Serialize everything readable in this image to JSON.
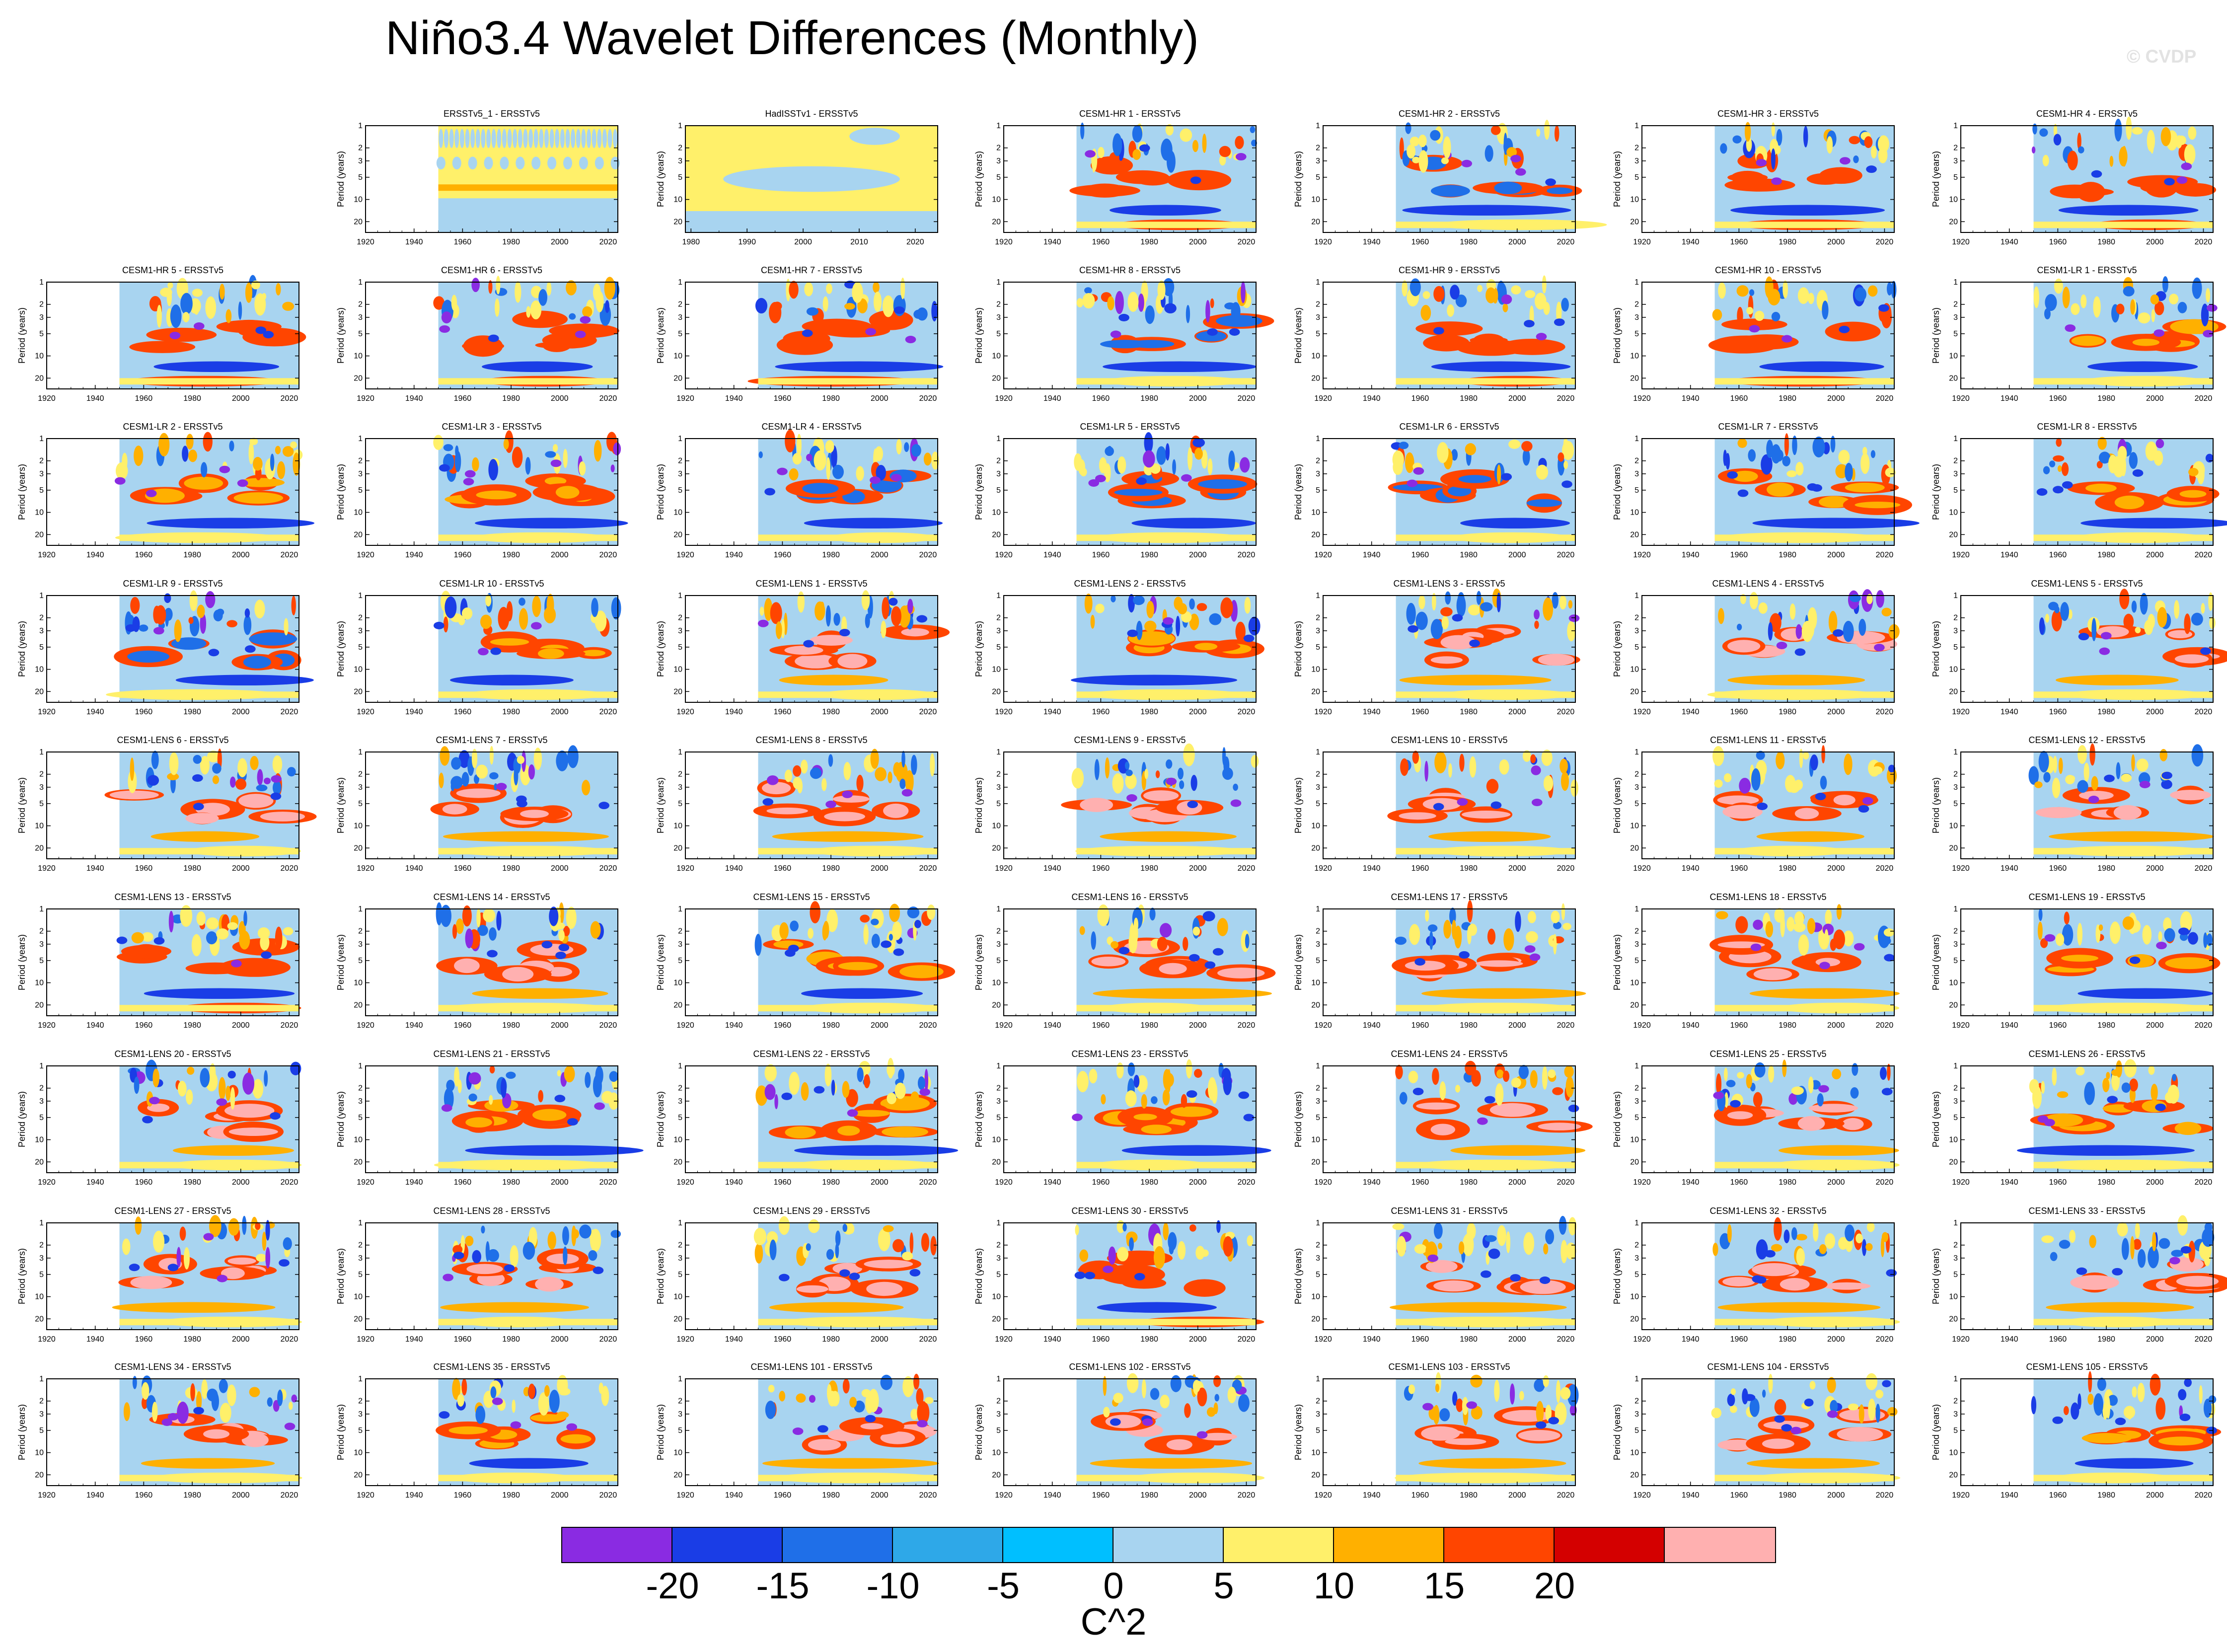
{
  "title": "Niño3.4 Wavelet Differences (Monthly)",
  "watermark": "© CVDP",
  "chart_data": {
    "type": "heatmap",
    "title": "Niño3.4 Wavelet Differences (Monthly)",
    "ylabel": "Period (years)",
    "yticks": [
      "1",
      "2",
      "3",
      "5",
      "10",
      "20"
    ],
    "xticks_default": [
      "1920",
      "1940",
      "1960",
      "1980",
      "2000",
      "2020"
    ],
    "xlim_default": [
      1920,
      2024
    ],
    "colorbar": {
      "units": "C^2",
      "labels": [
        "-20",
        "-15",
        "-10",
        "-5",
        "0",
        "5",
        "10",
        "15",
        "20"
      ],
      "colors": [
        "#8a2be2",
        "#1a3de6",
        "#1f6fe8",
        "#2ea8e8",
        "#00bfff",
        "#a8d4f0",
        "#fff06a",
        "#ffb000",
        "#ff4500",
        "#d40000",
        "#ffb0b0"
      ]
    },
    "panels": [
      {
        "name": "ERSSTv5_1 - ERSSTv5",
        "start": 1950,
        "xticks": [
          "1920",
          "1940",
          "1960",
          "1980",
          "2000",
          "2020"
        ],
        "pattern": "stripe"
      },
      {
        "name": "HadISSTv1 - ERSSTv5",
        "start": 1979,
        "xticks": [
          "1980",
          "1990",
          "2000",
          "2010",
          "2020"
        ],
        "pattern": "flat"
      },
      {
        "name": "CESM1-HR 1 - ERSSTv5",
        "start": 1950,
        "pattern": "warm"
      },
      {
        "name": "CESM1-HR 2 - ERSSTv5",
        "start": 1950,
        "pattern": "cool"
      },
      {
        "name": "CESM1-HR 3 - ERSSTv5",
        "start": 1950,
        "pattern": "warm"
      },
      {
        "name": "CESM1-HR 4 - ERSSTv5",
        "start": 1950,
        "pattern": "warm"
      },
      {
        "name": "CESM1-HR 5 - ERSSTv5",
        "start": 1950,
        "pattern": "warm"
      },
      {
        "name": "CESM1-HR 6 - ERSSTv5",
        "start": 1950,
        "pattern": "warm"
      },
      {
        "name": "CESM1-HR 7 - ERSSTv5",
        "start": 1950,
        "pattern": "warm"
      },
      {
        "name": "CESM1-HR 8 - ERSSTv5",
        "start": 1950,
        "pattern": "cool"
      },
      {
        "name": "CESM1-HR 9 - ERSSTv5",
        "start": 1950,
        "pattern": "warm"
      },
      {
        "name": "CESM1-HR 10 - ERSSTv5",
        "start": 1950,
        "pattern": "warm"
      },
      {
        "name": "CESM1-LR 1 - ERSSTv5",
        "start": 1950,
        "pattern": "mixed"
      },
      {
        "name": "CESM1-LR 2 - ERSSTv5",
        "start": 1950,
        "pattern": "mixed"
      },
      {
        "name": "CESM1-LR 3 - ERSSTv5",
        "start": 1950,
        "pattern": "mixed"
      },
      {
        "name": "CESM1-LR 4 - ERSSTv5",
        "start": 1950,
        "pattern": "cool"
      },
      {
        "name": "CESM1-LR 5 - ERSSTv5",
        "start": 1950,
        "pattern": "cool"
      },
      {
        "name": "CESM1-LR 6 - ERSSTv5",
        "start": 1950,
        "pattern": "cool"
      },
      {
        "name": "CESM1-LR 7 - ERSSTv5",
        "start": 1950,
        "pattern": "mixed"
      },
      {
        "name": "CESM1-LR 8 - ERSSTv5",
        "start": 1950,
        "pattern": "mixed"
      },
      {
        "name": "CESM1-LR 9 - ERSSTv5",
        "start": 1950,
        "pattern": "cool"
      },
      {
        "name": "CESM1-LR 10 - ERSSTv5",
        "start": 1950,
        "pattern": "mixed"
      },
      {
        "name": "CESM1-LENS 1 - ERSSTv5",
        "start": 1950,
        "pattern": "hot"
      },
      {
        "name": "CESM1-LENS 2 - ERSSTv5",
        "start": 1950,
        "pattern": "mixed"
      },
      {
        "name": "CESM1-LENS 3 - ERSSTv5",
        "start": 1950,
        "pattern": "hot"
      },
      {
        "name": "CESM1-LENS 4 - ERSSTv5",
        "start": 1950,
        "pattern": "hot"
      },
      {
        "name": "CESM1-LENS 5 - ERSSTv5",
        "start": 1950,
        "pattern": "hot"
      },
      {
        "name": "CESM1-LENS 6 - ERSSTv5",
        "start": 1950,
        "pattern": "hot"
      },
      {
        "name": "CESM1-LENS 7 - ERSSTv5",
        "start": 1950,
        "pattern": "hot"
      },
      {
        "name": "CESM1-LENS 8 - ERSSTv5",
        "start": 1950,
        "pattern": "hot"
      },
      {
        "name": "CESM1-LENS 9 - ERSSTv5",
        "start": 1950,
        "pattern": "hot"
      },
      {
        "name": "CESM1-LENS 10 - ERSSTv5",
        "start": 1950,
        "pattern": "hot"
      },
      {
        "name": "CESM1-LENS 11 - ERSSTv5",
        "start": 1950,
        "pattern": "hot"
      },
      {
        "name": "CESM1-LENS 12 - ERSSTv5",
        "start": 1950,
        "pattern": "hot"
      },
      {
        "name": "CESM1-LENS 13 - ERSSTv5",
        "start": 1950,
        "pattern": "warm"
      },
      {
        "name": "CESM1-LENS 14 - ERSSTv5",
        "start": 1950,
        "pattern": "hot"
      },
      {
        "name": "CESM1-LENS 15 - ERSSTv5",
        "start": 1950,
        "pattern": "mixed"
      },
      {
        "name": "CESM1-LENS 16 - ERSSTv5",
        "start": 1950,
        "pattern": "hot"
      },
      {
        "name": "CESM1-LENS 17 - ERSSTv5",
        "start": 1950,
        "pattern": "hot"
      },
      {
        "name": "CESM1-LENS 18 - ERSSTv5",
        "start": 1950,
        "pattern": "hot"
      },
      {
        "name": "CESM1-LENS 19 - ERSSTv5",
        "start": 1950,
        "pattern": "mixed"
      },
      {
        "name": "CESM1-LENS 20 - ERSSTv5",
        "start": 1950,
        "pattern": "hot"
      },
      {
        "name": "CESM1-LENS 21 - ERSSTv5",
        "start": 1950,
        "pattern": "mixed"
      },
      {
        "name": "CESM1-LENS 22 - ERSSTv5",
        "start": 1950,
        "pattern": "mixed"
      },
      {
        "name": "CESM1-LENS 23 - ERSSTv5",
        "start": 1950,
        "pattern": "mixed"
      },
      {
        "name": "CESM1-LENS 24 - ERSSTv5",
        "start": 1950,
        "pattern": "hot"
      },
      {
        "name": "CESM1-LENS 25 - ERSSTv5",
        "start": 1950,
        "pattern": "hot"
      },
      {
        "name": "CESM1-LENS 26 - ERSSTv5",
        "start": 1950,
        "pattern": "mixed"
      },
      {
        "name": "CESM1-LENS 27 - ERSSTv5",
        "start": 1950,
        "pattern": "hot"
      },
      {
        "name": "CESM1-LENS 28 - ERSSTv5",
        "start": 1950,
        "pattern": "hot"
      },
      {
        "name": "CESM1-LENS 29 - ERSSTv5",
        "start": 1950,
        "pattern": "hot"
      },
      {
        "name": "CESM1-LENS 30 - ERSSTv5",
        "start": 1950,
        "pattern": "warm"
      },
      {
        "name": "CESM1-LENS 31 - ERSSTv5",
        "start": 1950,
        "pattern": "hot"
      },
      {
        "name": "CESM1-LENS 32 - ERSSTv5",
        "start": 1950,
        "pattern": "hot"
      },
      {
        "name": "CESM1-LENS 33 - ERSSTv5",
        "start": 1950,
        "pattern": "hot"
      },
      {
        "name": "CESM1-LENS 34 - ERSSTv5",
        "start": 1950,
        "pattern": "hot"
      },
      {
        "name": "CESM1-LENS 35 - ERSSTv5",
        "start": 1950,
        "pattern": "mixed"
      },
      {
        "name": "CESM1-LENS 101 - ERSSTv5",
        "start": 1950,
        "pattern": "hot"
      },
      {
        "name": "CESM1-LENS 102 - ERSSTv5",
        "start": 1950,
        "pattern": "hot"
      },
      {
        "name": "CESM1-LENS 103 - ERSSTv5",
        "start": 1950,
        "pattern": "hot"
      },
      {
        "name": "CESM1-LENS 104 - ERSSTv5",
        "start": 1950,
        "pattern": "hot"
      },
      {
        "name": "CESM1-LENS 105 - ERSSTv5",
        "start": 1950,
        "pattern": "mixed"
      }
    ]
  }
}
